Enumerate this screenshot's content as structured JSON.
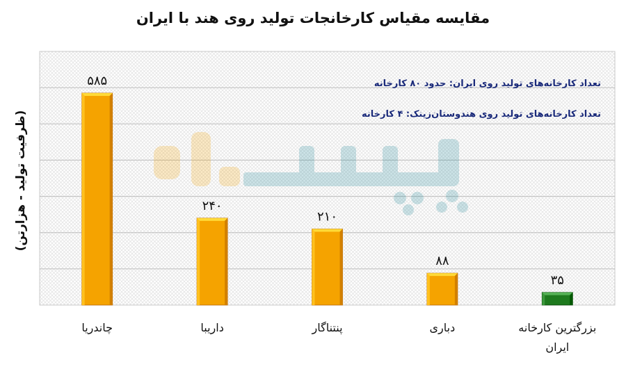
{
  "chart_data": {
    "type": "bar",
    "title": "مقایسه مقیاس کارخانجات تولید روی هند با ایران",
    "ylabel": "(ظرفیت تولید - هزارتن)",
    "xlabel": "",
    "categories": [
      "چاندریا",
      "داریبا",
      "پنتناگار",
      "دباری",
      "بزرگترین کارخانه ایران"
    ],
    "values": [
      585,
      240,
      210,
      88,
      35
    ],
    "value_labels": [
      "۵۸۵",
      "۲۴۰",
      "۲۱۰",
      "۸۸",
      "۳۵"
    ],
    "bar_colors": [
      "#f5a300",
      "#f5a300",
      "#f5a300",
      "#f5a300",
      "#1e7a1e"
    ],
    "ylim": [
      0,
      700
    ],
    "grid": true,
    "annotations": [
      "تعداد کارخانه‌های تولید روی ایران: حدود ۸۰ کارخانه",
      "تعداد کارخانه‌های تولید روی هندوستان‌زینک: ۴ کارخانه"
    ]
  },
  "colors": {
    "bar_main": "#f5a300",
    "bar_iran": "#1e7a1e",
    "annotation_text": "#1a2a7a",
    "watermark_orange": "#f5a300",
    "watermark_teal": "#1f8a98"
  }
}
